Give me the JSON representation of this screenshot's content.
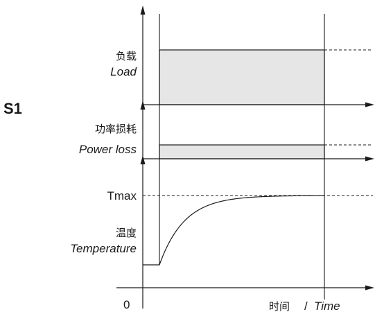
{
  "title": "S1",
  "load": {
    "label_cn": "负载",
    "label_en": "Load"
  },
  "power_loss": {
    "label_cn": "功率损耗",
    "label_en": "Power loss"
  },
  "temperature": {
    "label_cn": "温度",
    "label_en": "Temperature",
    "max_label": "Tmax"
  },
  "time_axis": {
    "origin": "0",
    "label_cn": "时间",
    "separator": "/",
    "label_en": "Time"
  },
  "colors": {
    "band_fill": "#e6e6e6",
    "ink": "#1a1a1a"
  }
}
